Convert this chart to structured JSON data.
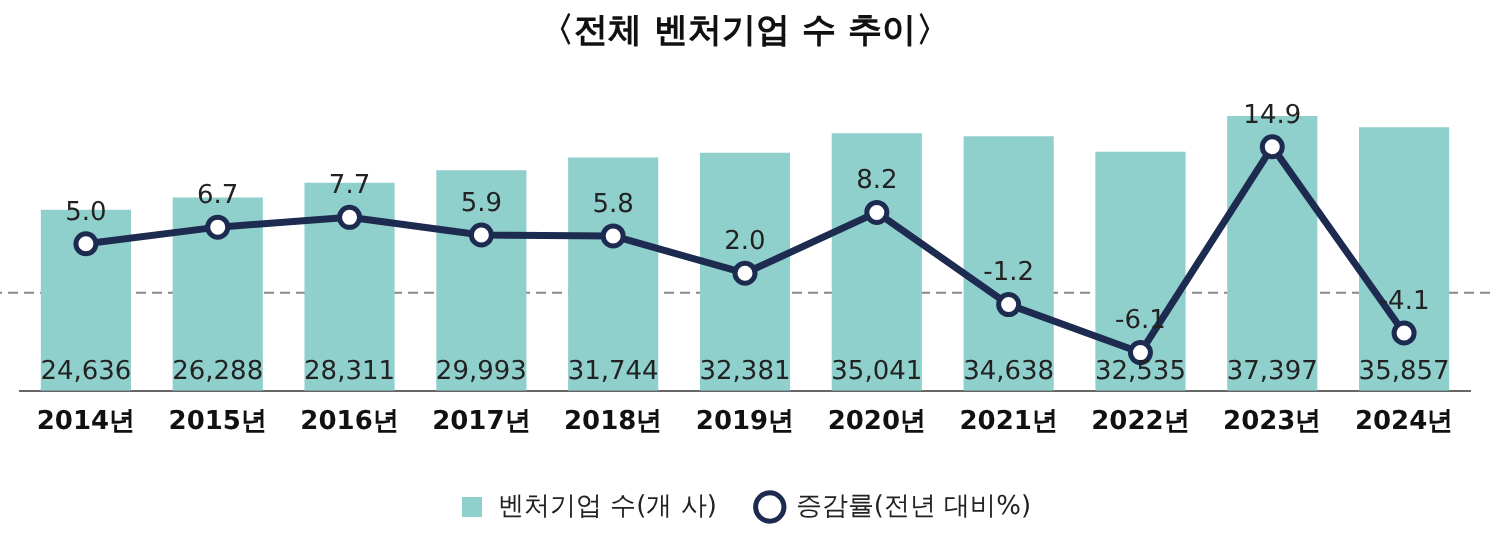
{
  "chart_data": {
    "type": "bar",
    "title": "〈전체 벤처기업 수 추이〉",
    "categories": [
      "2014년",
      "2015년",
      "2016년",
      "2017년",
      "2018년",
      "2019년",
      "2020년",
      "2021년",
      "2022년",
      "2023년",
      "2024년"
    ],
    "series": [
      {
        "name": "벤처기업 수(개 사)",
        "color": "#8fcfcc",
        "values": [
          24636,
          26288,
          28311,
          29993,
          31744,
          32381,
          35041,
          34638,
          32535,
          37397,
          35857
        ],
        "value_labels": [
          "24,636",
          "26,288",
          "28,311",
          "29,993",
          "31,744",
          "32,381",
          "35,041",
          "34,638",
          "32,535",
          "37,397",
          "35,857"
        ]
      },
      {
        "name": "증감률(전년 대비%)",
        "type": "line",
        "axis": "y2",
        "color": "#1e2b50",
        "values": [
          5.0,
          6.7,
          7.7,
          5.9,
          5.8,
          2.0,
          8.2,
          -1.2,
          -6.1,
          14.9,
          -4.1
        ],
        "value_labels": [
          "5.0",
          "6.7",
          "7.7",
          "5.9",
          "5.8",
          "2.0",
          "8.2",
          "-1.2",
          "-6.1",
          "14.9",
          "-4.1"
        ]
      }
    ],
    "tick_labels": "x",
    "grid": false,
    "legend": "bottom",
    "marker": "circle",
    "line_style": "solid",
    "ref_lines": [
      {
        "axis": "y2",
        "value": 0,
        "color": "#888888",
        "line_style": "dashed"
      }
    ]
  }
}
